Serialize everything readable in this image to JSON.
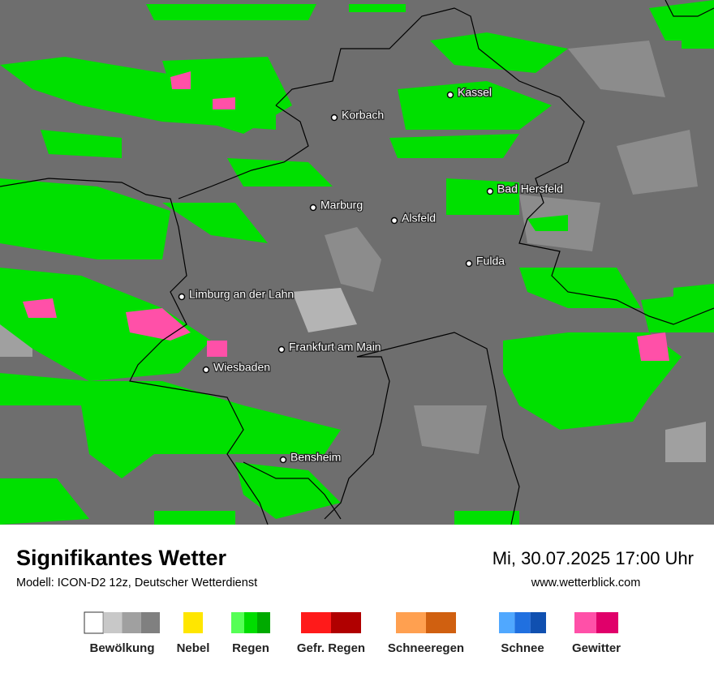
{
  "map": {
    "cities": [
      {
        "label": "Kassel"
      },
      {
        "label": "Korbach"
      },
      {
        "label": "Bad Hersfeld"
      },
      {
        "label": "Marburg"
      },
      {
        "label": "Alsfeld"
      },
      {
        "label": "Fulda"
      },
      {
        "label": "Limburg an der Lahn"
      },
      {
        "label": "Frankfurt am Main"
      },
      {
        "label": "Wiesbaden"
      },
      {
        "label": "Bensheim"
      }
    ]
  },
  "footer": {
    "title": "Signifikantes Wetter",
    "subtitle": "Modell: ICON-D2 12z, Deutscher Wetterdienst",
    "datetime": "Mi, 30.07.2025 17:00 Uhr",
    "source": "www.wetterblick.com"
  },
  "legend": [
    {
      "label": "Bewölkung",
      "colors": [
        "#ffffff",
        "#c8c8c8",
        "#a0a0a0",
        "#808080"
      ]
    },
    {
      "label": "Nebel",
      "colors": [
        "#ffe600"
      ]
    },
    {
      "label": "Regen",
      "colors": [
        "#55ff55",
        "#00dd00",
        "#00aa00"
      ]
    },
    {
      "label": "Gefr. Regen",
      "colors": [
        "#ff1a1a",
        "#b00000"
      ]
    },
    {
      "label": "Schneeregen",
      "colors": [
        "#ffa050",
        "#d06010"
      ]
    },
    {
      "label": "Schnee",
      "colors": [
        "#50a8ff",
        "#2070e0",
        "#1050b0"
      ]
    },
    {
      "label": "Gewitter",
      "colors": [
        "#ff50a8",
        "#e0006a"
      ]
    }
  ]
}
